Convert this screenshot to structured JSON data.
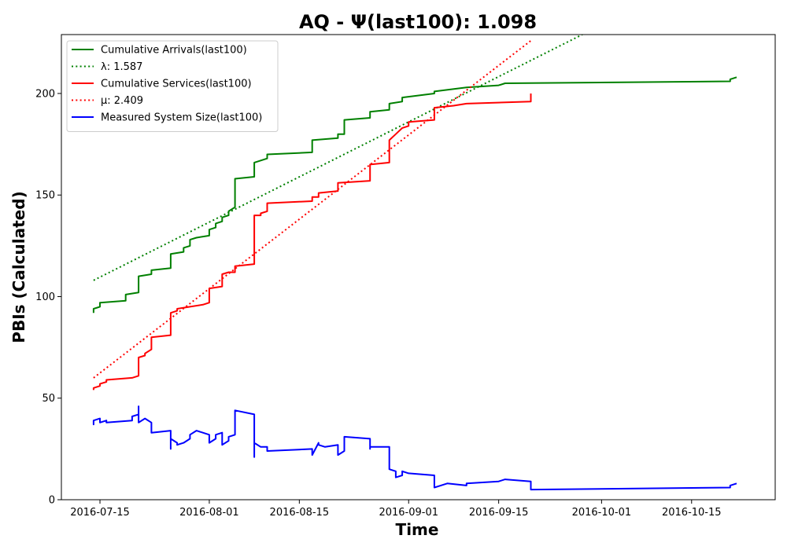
{
  "chart_data": {
    "type": "line",
    "title": "AQ -  Ψ(last100): 1.098",
    "xlabel": "Time",
    "ylabel": "PBIs (Calculated)",
    "xlim": [
      "2016-07-09",
      "2016-10-28"
    ],
    "ylim": [
      0,
      229
    ],
    "grid": false,
    "legend_position": "top-left",
    "x_ticks": [
      "2016-07-15",
      "2016-08-01",
      "2016-08-15",
      "2016-09-01",
      "2016-09-15",
      "2016-10-01",
      "2016-10-15"
    ],
    "y_ticks": [
      0,
      50,
      100,
      150,
      200
    ],
    "series": [
      {
        "name": "Cumulative Arrivals(last100)",
        "color": "#008000",
        "style": "solid",
        "points": [
          [
            "2016-07-14",
            92
          ],
          [
            "2016-07-14",
            94
          ],
          [
            "2016-07-15",
            95
          ],
          [
            "2016-07-15",
            97
          ],
          [
            "2016-07-19",
            98
          ],
          [
            "2016-07-19",
            101
          ],
          [
            "2016-07-21",
            102
          ],
          [
            "2016-07-21",
            110
          ],
          [
            "2016-07-23",
            111
          ],
          [
            "2016-07-23",
            113
          ],
          [
            "2016-07-26",
            114
          ],
          [
            "2016-07-26",
            121
          ],
          [
            "2016-07-28",
            122
          ],
          [
            "2016-07-28",
            124
          ],
          [
            "2016-07-29",
            125
          ],
          [
            "2016-07-29",
            128
          ],
          [
            "2016-07-30",
            129
          ],
          [
            "2016-08-01",
            130
          ],
          [
            "2016-08-01",
            133
          ],
          [
            "2016-08-02",
            134
          ],
          [
            "2016-08-02",
            136
          ],
          [
            "2016-08-03",
            137
          ],
          [
            "2016-08-03",
            139
          ],
          [
            "2016-08-04",
            140
          ],
          [
            "2016-08-04",
            142
          ],
          [
            "2016-08-05",
            144
          ],
          [
            "2016-08-05",
            158
          ],
          [
            "2016-08-08",
            159
          ],
          [
            "2016-08-08",
            166
          ],
          [
            "2016-08-10",
            168
          ],
          [
            "2016-08-10",
            170
          ],
          [
            "2016-08-17",
            171
          ],
          [
            "2016-08-17",
            177
          ],
          [
            "2016-08-21",
            178
          ],
          [
            "2016-08-21",
            180
          ],
          [
            "2016-08-22",
            180
          ],
          [
            "2016-08-22",
            187
          ],
          [
            "2016-08-26",
            188
          ],
          [
            "2016-08-26",
            191
          ],
          [
            "2016-08-29",
            192
          ],
          [
            "2016-08-29",
            195
          ],
          [
            "2016-08-31",
            196
          ],
          [
            "2016-08-31",
            198
          ],
          [
            "2016-09-05",
            200
          ],
          [
            "2016-09-05",
            201
          ],
          [
            "2016-09-10",
            203
          ],
          [
            "2016-09-15",
            204
          ],
          [
            "2016-09-16",
            205
          ],
          [
            "2016-10-21",
            206
          ],
          [
            "2016-10-21",
            207
          ],
          [
            "2016-10-22",
            208
          ]
        ]
      },
      {
        "name": "λ: 1.587",
        "color": "#008000",
        "style": "dotted",
        "points": [
          [
            "2016-07-14",
            108
          ],
          [
            "2016-09-28",
            229
          ]
        ]
      },
      {
        "name": "Cumulative Services(last100)",
        "color": "#ff0000",
        "style": "solid",
        "points": [
          [
            "2016-07-14",
            54
          ],
          [
            "2016-07-14",
            55
          ],
          [
            "2016-07-15",
            56
          ],
          [
            "2016-07-15",
            57
          ],
          [
            "2016-07-16",
            58
          ],
          [
            "2016-07-16",
            59
          ],
          [
            "2016-07-20",
            60
          ],
          [
            "2016-07-21",
            61
          ],
          [
            "2016-07-21",
            70
          ],
          [
            "2016-07-22",
            71
          ],
          [
            "2016-07-22",
            72
          ],
          [
            "2016-07-23",
            74
          ],
          [
            "2016-07-23",
            80
          ],
          [
            "2016-07-26",
            81
          ],
          [
            "2016-07-26",
            92
          ],
          [
            "2016-07-27",
            93
          ],
          [
            "2016-07-27",
            94
          ],
          [
            "2016-07-29",
            95
          ],
          [
            "2016-07-31",
            96
          ],
          [
            "2016-08-01",
            97
          ],
          [
            "2016-08-01",
            104
          ],
          [
            "2016-08-03",
            105
          ],
          [
            "2016-08-03",
            111
          ],
          [
            "2016-08-04",
            112
          ],
          [
            "2016-08-05",
            112
          ],
          [
            "2016-08-05",
            115
          ],
          [
            "2016-08-08",
            116
          ],
          [
            "2016-08-08",
            140
          ],
          [
            "2016-08-09",
            140
          ],
          [
            "2016-08-09",
            141
          ],
          [
            "2016-08-10",
            142
          ],
          [
            "2016-08-10",
            146
          ],
          [
            "2016-08-17",
            147
          ],
          [
            "2016-08-17",
            149
          ],
          [
            "2016-08-18",
            149
          ],
          [
            "2016-08-18",
            151
          ],
          [
            "2016-08-21",
            152
          ],
          [
            "2016-08-21",
            156
          ],
          [
            "2016-08-26",
            157
          ],
          [
            "2016-08-26",
            165
          ],
          [
            "2016-08-29",
            166
          ],
          [
            "2016-08-29",
            177
          ],
          [
            "2016-08-30",
            180
          ],
          [
            "2016-08-31",
            183
          ],
          [
            "2016-09-01",
            184
          ],
          [
            "2016-09-01",
            186
          ],
          [
            "2016-09-05",
            187
          ],
          [
            "2016-09-05",
            193
          ],
          [
            "2016-09-08",
            194
          ],
          [
            "2016-09-10",
            195
          ],
          [
            "2016-09-20",
            196
          ],
          [
            "2016-09-20",
            198
          ],
          [
            "2016-09-20",
            200
          ]
        ]
      },
      {
        "name": "μ: 2.409",
        "color": "#ff0000",
        "style": "dotted",
        "points": [
          [
            "2016-07-14",
            60
          ],
          [
            "2016-09-20",
            226
          ]
        ]
      },
      {
        "name": "Measured System Size(last100)",
        "color": "#0000ff",
        "style": "solid",
        "points": [
          [
            "2016-07-14",
            38
          ],
          [
            "2016-07-14",
            37
          ],
          [
            "2016-07-14",
            39
          ],
          [
            "2016-07-15",
            40
          ],
          [
            "2016-07-15",
            38
          ],
          [
            "2016-07-16",
            39
          ],
          [
            "2016-07-16",
            38
          ],
          [
            "2016-07-20",
            39
          ],
          [
            "2016-07-20",
            41
          ],
          [
            "2016-07-21",
            42
          ],
          [
            "2016-07-21",
            46
          ],
          [
            "2016-07-21",
            38
          ],
          [
            "2016-07-22",
            40
          ],
          [
            "2016-07-23",
            38
          ],
          [
            "2016-07-23",
            33
          ],
          [
            "2016-07-26",
            34
          ],
          [
            "2016-07-26",
            25
          ],
          [
            "2016-07-26",
            30
          ],
          [
            "2016-07-27",
            28
          ],
          [
            "2016-07-27",
            27
          ],
          [
            "2016-07-28",
            28
          ],
          [
            "2016-07-29",
            30
          ],
          [
            "2016-07-29",
            32
          ],
          [
            "2016-07-30",
            34
          ],
          [
            "2016-07-31",
            33
          ],
          [
            "2016-08-01",
            32
          ],
          [
            "2016-08-01",
            28
          ],
          [
            "2016-08-02",
            30
          ],
          [
            "2016-08-02",
            32
          ],
          [
            "2016-08-03",
            33
          ],
          [
            "2016-08-03",
            27
          ],
          [
            "2016-08-04",
            29
          ],
          [
            "2016-08-04",
            31
          ],
          [
            "2016-08-05",
            32
          ],
          [
            "2016-08-05",
            44
          ],
          [
            "2016-08-08",
            42
          ],
          [
            "2016-08-08",
            21
          ],
          [
            "2016-08-08",
            28
          ],
          [
            "2016-08-09",
            26
          ],
          [
            "2016-08-10",
            26
          ],
          [
            "2016-08-10",
            24
          ],
          [
            "2016-08-17",
            25
          ],
          [
            "2016-08-17",
            22
          ],
          [
            "2016-08-18",
            28
          ],
          [
            "2016-08-18",
            27
          ],
          [
            "2016-08-19",
            26
          ],
          [
            "2016-08-21",
            27
          ],
          [
            "2016-08-21",
            22
          ],
          [
            "2016-08-22",
            24
          ],
          [
            "2016-08-22",
            31
          ],
          [
            "2016-08-26",
            30
          ],
          [
            "2016-08-26",
            25
          ],
          [
            "2016-08-26",
            26
          ],
          [
            "2016-08-29",
            26
          ],
          [
            "2016-08-29",
            15
          ],
          [
            "2016-08-30",
            14
          ],
          [
            "2016-08-30",
            11
          ],
          [
            "2016-08-31",
            12
          ],
          [
            "2016-08-31",
            14
          ],
          [
            "2016-09-01",
            13
          ],
          [
            "2016-09-05",
            12
          ],
          [
            "2016-09-05",
            6
          ],
          [
            "2016-09-06",
            7
          ],
          [
            "2016-09-07",
            8
          ],
          [
            "2016-09-10",
            7
          ],
          [
            "2016-09-10",
            8
          ],
          [
            "2016-09-15",
            9
          ],
          [
            "2016-09-16",
            10
          ],
          [
            "2016-09-20",
            9
          ],
          [
            "2016-09-20",
            5
          ],
          [
            "2016-10-21",
            6
          ],
          [
            "2016-10-21",
            7
          ],
          [
            "2016-10-22",
            8
          ]
        ]
      }
    ],
    "legend": [
      "Cumulative Arrivals(last100)",
      "λ: 1.587",
      "Cumulative Services(last100)",
      "μ: 2.409",
      "Measured System Size(last100)"
    ]
  }
}
